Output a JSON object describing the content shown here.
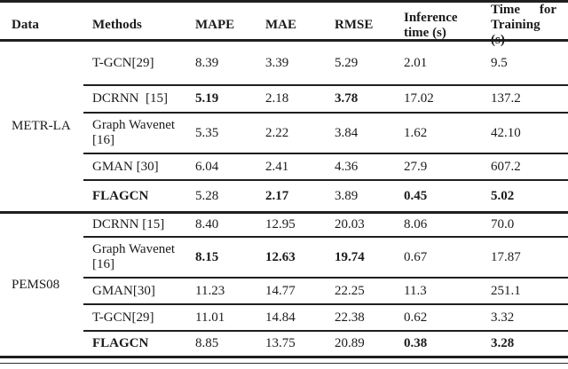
{
  "table": {
    "columns": [
      "Data",
      "Methods",
      "MAPE",
      "MAE",
      "RMSE",
      "Inference time (s)",
      "Time for Training (s)"
    ],
    "sections": [
      {
        "dataset": "METR-LA",
        "rows": [
          {
            "method": "T-GCN[29]",
            "method_bold": false,
            "values": [
              "8.39",
              "3.39",
              "5.29",
              "2.01",
              "9.5"
            ],
            "bold": [
              false,
              false,
              false,
              false,
              false
            ]
          },
          {
            "method": "DCRNN  [15]",
            "method_bold": false,
            "values": [
              "5.19",
              "2.18",
              "3.78",
              "17.02",
              "137.2"
            ],
            "bold": [
              true,
              false,
              true,
              false,
              false
            ]
          },
          {
            "method": "Graph Wavenet [16]",
            "method_bold": false,
            "values": [
              "5.35",
              "2.22",
              "3.84",
              "1.62",
              "42.10"
            ],
            "bold": [
              false,
              false,
              false,
              false,
              false
            ]
          },
          {
            "method": "GMAN [30]",
            "method_bold": false,
            "values": [
              "6.04",
              "2.41",
              "4.36",
              "27.9",
              "607.2"
            ],
            "bold": [
              false,
              false,
              false,
              false,
              false
            ]
          },
          {
            "method": "FLAGCN",
            "method_bold": true,
            "values": [
              "5.28",
              "2.17",
              "3.89",
              "0.45",
              "5.02"
            ],
            "bold": [
              false,
              true,
              false,
              true,
              true
            ]
          }
        ]
      },
      {
        "dataset": "PEMS08",
        "rows": [
          {
            "method": "DCRNN [15]",
            "method_bold": false,
            "values": [
              "8.40",
              "12.95",
              "20.03",
              "8.06",
              "70.0"
            ],
            "bold": [
              false,
              false,
              false,
              false,
              false
            ]
          },
          {
            "method": "Graph Wavenet [16]",
            "method_bold": false,
            "values": [
              "8.15",
              "12.63",
              "19.74",
              "0.67",
              "17.87"
            ],
            "bold": [
              true,
              true,
              true,
              false,
              false
            ]
          },
          {
            "method": "GMAN[30]",
            "method_bold": false,
            "values": [
              "11.23",
              "14.77",
              "22.25",
              "11.3",
              "251.1"
            ],
            "bold": [
              false,
              false,
              false,
              false,
              false
            ]
          },
          {
            "method": "T-GCN[29]",
            "method_bold": false,
            "values": [
              "11.01",
              "14.84",
              "22.38",
              "0.62",
              "3.32"
            ],
            "bold": [
              false,
              false,
              false,
              false,
              false
            ]
          },
          {
            "method": "FLAGCN",
            "method_bold": true,
            "values": [
              "8.85",
              "13.75",
              "20.89",
              "0.38",
              "3.28"
            ],
            "bold": [
              false,
              false,
              false,
              true,
              true
            ]
          }
        ]
      }
    ]
  },
  "colors": {
    "text": "#1b1b1b",
    "rule": "#1f1f1f",
    "background": "#ffffff"
  }
}
